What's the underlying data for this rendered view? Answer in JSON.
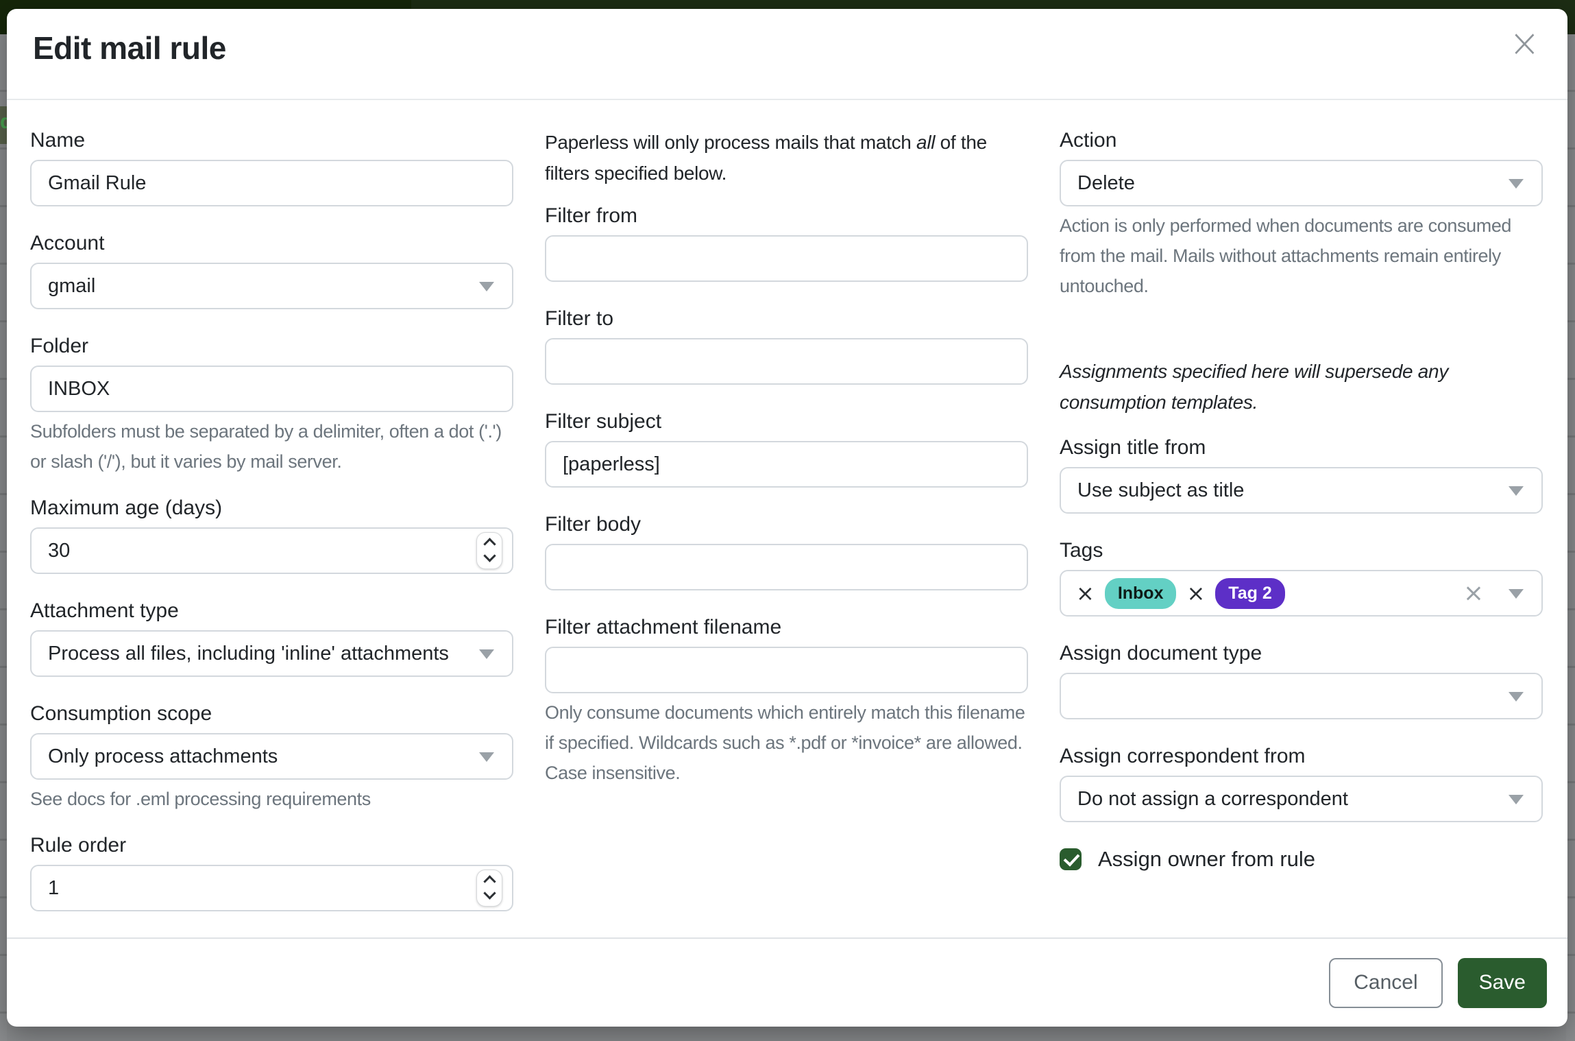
{
  "modal": {
    "title": "Edit mail rule",
    "close_icon": "×",
    "footer": {
      "cancel_label": "Cancel",
      "save_label": "Save"
    }
  },
  "colors": {
    "accent_green": "#2a5c2e",
    "navbar_green": "#1d2d14",
    "tag_inbox": "#63d0c4",
    "tag_2": "#5d2fc7"
  },
  "left": {
    "name": {
      "label": "Name",
      "value": "Gmail Rule"
    },
    "account": {
      "label": "Account",
      "value": "gmail"
    },
    "folder": {
      "label": "Folder",
      "value": "INBOX",
      "hint": "Subfolders must be separated by a delimiter, often a dot ('.') or slash ('/'), but it varies by mail server."
    },
    "max_age": {
      "label": "Maximum age (days)",
      "value": "30"
    },
    "attachment_type": {
      "label": "Attachment type",
      "value": "Process all files, including 'inline' attachments"
    },
    "consumption_scope": {
      "label": "Consumption scope",
      "value": "Only process attachments",
      "hint": "See docs for .eml processing requirements"
    },
    "rule_order": {
      "label": "Rule order",
      "value": "1"
    }
  },
  "filters": {
    "intro": {
      "pre": "Paperless will only process mails that match ",
      "emph": "all",
      "post": " of the filters specified below."
    },
    "from": {
      "label": "Filter from",
      "value": ""
    },
    "to": {
      "label": "Filter to",
      "value": ""
    },
    "subject": {
      "label": "Filter subject",
      "value": "[paperless]"
    },
    "body": {
      "label": "Filter body",
      "value": ""
    },
    "attachment_filename": {
      "label": "Filter attachment filename",
      "value": "",
      "hint": "Only consume documents which entirely match this filename if specified. Wildcards such as *.pdf or *invoice* are allowed. Case insensitive."
    }
  },
  "action": {
    "label": "Action",
    "value": "Delete",
    "hint": "Action is only performed when documents are consumed from the mail. Mails without attachments remain entirely untouched.",
    "note": "Assignments specified here will supersede any consumption templates."
  },
  "assign": {
    "title_from": {
      "label": "Assign title from",
      "value": "Use subject as title"
    },
    "tags": {
      "label": "Tags",
      "remove_icon": "×",
      "clear_icon": "×",
      "items": [
        {
          "name": "Inbox",
          "color": "#63d0c4",
          "text_color": "#0e1b17"
        },
        {
          "name": "Tag 2",
          "color": "#5d2fc7",
          "text_color": "#ffffff"
        }
      ]
    },
    "document_type": {
      "label": "Assign document type",
      "value": ""
    },
    "correspondent_from": {
      "label": "Assign correspondent from",
      "value": "Do not assign a correspondent"
    },
    "owner": {
      "label": "Assign owner from rule",
      "checked": true
    }
  },
  "backdrop": {
    "left_fragment": "d"
  }
}
